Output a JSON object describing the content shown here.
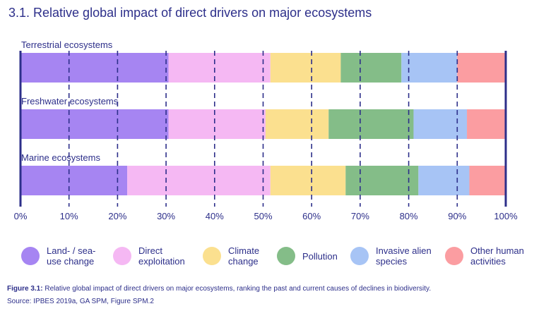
{
  "title": "3.1.  Relative global impact of direct drivers on major ecosystems",
  "chart_data": {
    "type": "bar",
    "orientation": "horizontal-stacked-percent",
    "categories": [
      "Terrestrial ecosystems",
      "Freshwater ecosystems",
      "Marine ecosystems"
    ],
    "series": [
      {
        "name": "Land- / sea-use change",
        "values": [
          30.5,
          30.5,
          22
        ],
        "color": "#a685f2"
      },
      {
        "name": "Direct exploitation",
        "values": [
          21,
          20,
          29.5
        ],
        "color": "#f5b8f3"
      },
      {
        "name": "Climate change",
        "values": [
          14.5,
          13,
          15.5
        ],
        "color": "#fbe08f"
      },
      {
        "name": "Pollution",
        "values": [
          12.5,
          17.5,
          15
        ],
        "color": "#84bd88"
      },
      {
        "name": "Invasive alien species",
        "values": [
          11.5,
          11,
          10.5
        ],
        "color": "#a7c4f5"
      },
      {
        "name": "Other human activities",
        "values": [
          10,
          8,
          7.5
        ],
        "color": "#fb9da1"
      }
    ],
    "xlim": [
      0,
      100
    ],
    "ticks": [
      "0%",
      "10%",
      "20%",
      "30%",
      "40%",
      "50%",
      "60%",
      "70%",
      "80%",
      "90%",
      "100%"
    ],
    "gridlines": "dashed",
    "legend_position": "bottom"
  },
  "caption": {
    "label": "Figure 3.1:",
    "text": " Relative global impact of direct drivers on major ecosystems, ranking the past and current causes of declines in biodiversity."
  },
  "source": "Source: IPBES 2019a, GA SPM, Figure SPM.2"
}
